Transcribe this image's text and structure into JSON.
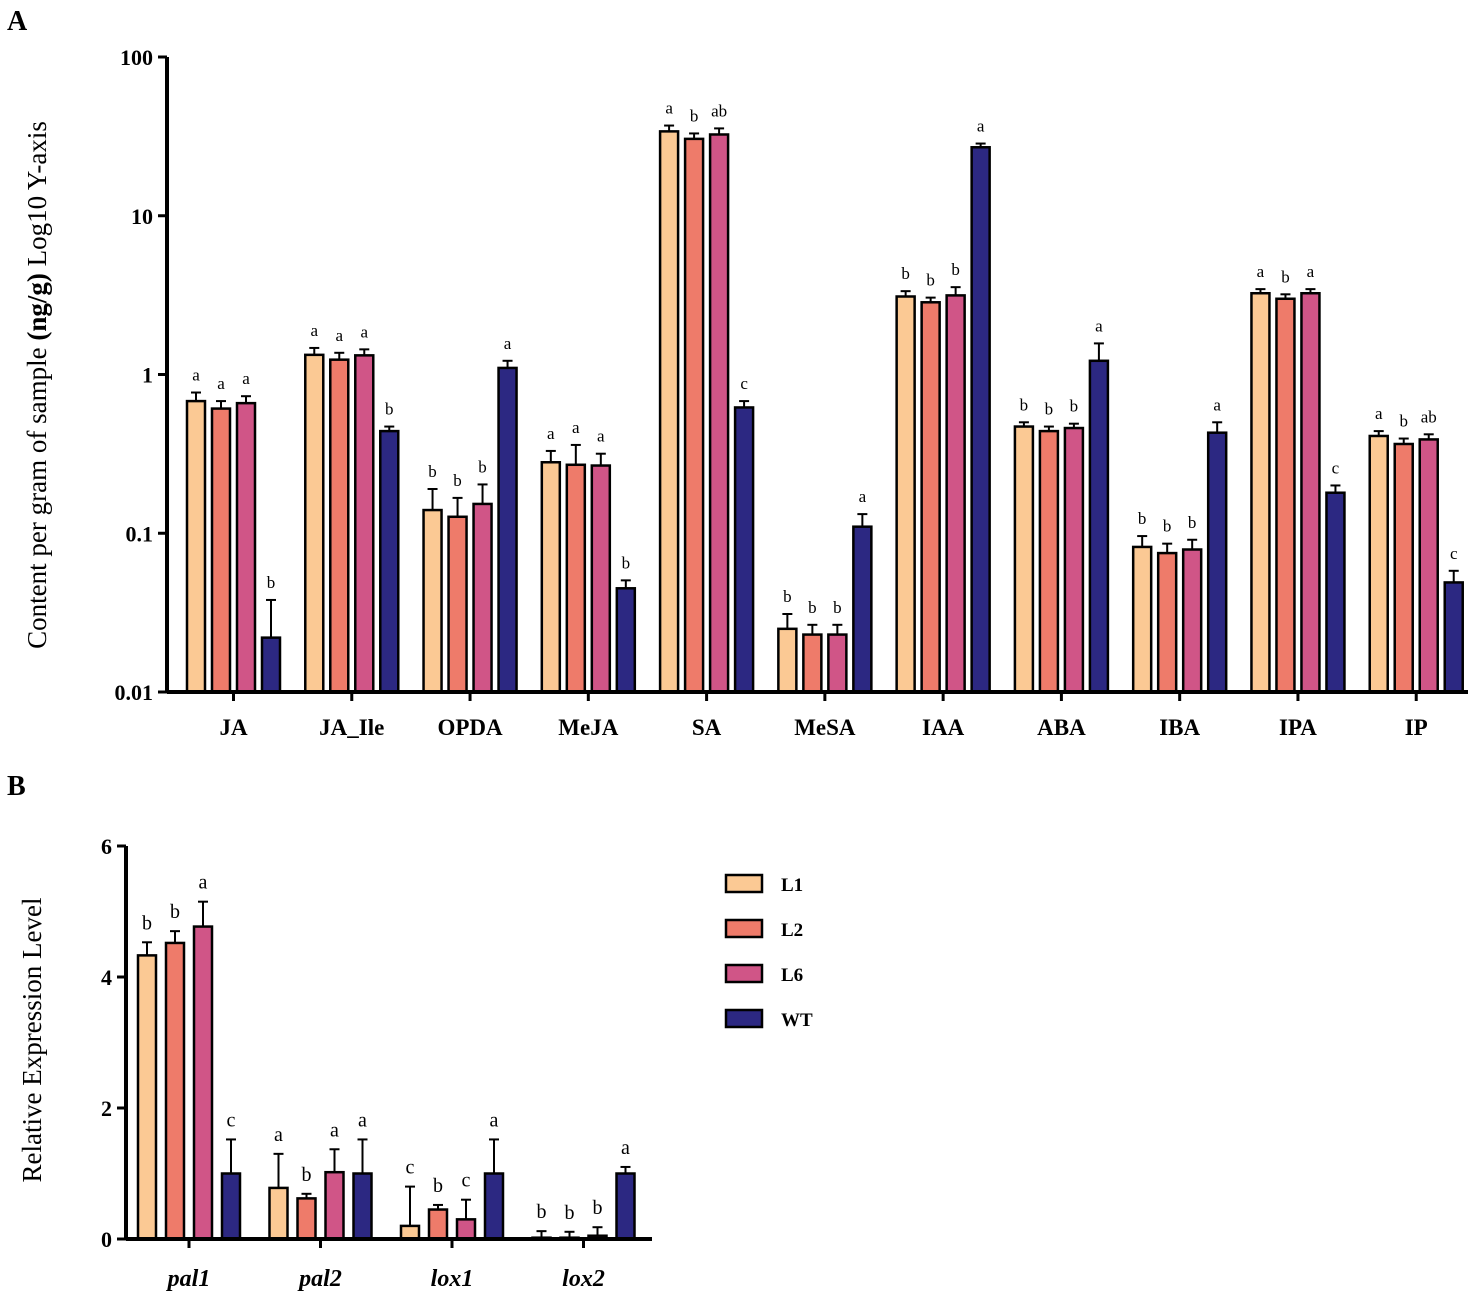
{
  "chart_data": [
    {
      "panel": "A",
      "type": "bar",
      "yscale": "log10",
      "ylabel_prefix": "Content per gram of sample ",
      "ylabel_unit": "(ng/g)",
      "ylabel_suffix": " Log10 Y-axis",
      "xlabel": "",
      "ylim": [
        0.01,
        100
      ],
      "ytick_values": [
        0.01,
        0.1,
        1,
        10,
        100
      ],
      "ytick_labels": [
        "0.01",
        "0.1",
        "1",
        "10",
        "100"
      ],
      "categories": [
        "JA",
        "JA_Ile",
        "OPDA",
        "MeJA",
        "SA",
        "MeSA",
        "IAA",
        "ABA",
        "IBA",
        "IPA",
        "IP"
      ],
      "series": [
        {
          "name": "L1",
          "color": "#FBC994",
          "values": [
            0.68,
            1.33,
            0.14,
            0.28,
            34,
            0.025,
            3.1,
            0.47,
            0.082,
            3.25,
            0.41
          ],
          "errors": [
            0.09,
            0.14,
            0.05,
            0.05,
            3,
            0.006,
            0.25,
            0.03,
            0.014,
            0.2,
            0.03
          ],
          "sig": [
            "a",
            "a",
            "b",
            "a",
            "a",
            "b",
            "b",
            "b",
            "b",
            "a",
            "a"
          ]
        },
        {
          "name": "L2",
          "color": "#EE7B6A",
          "values": [
            0.61,
            1.24,
            0.127,
            0.27,
            30.5,
            0.023,
            2.85,
            0.44,
            0.075,
            3.0,
            0.365
          ],
          "errors": [
            0.07,
            0.13,
            0.04,
            0.09,
            2.5,
            0.0035,
            0.2,
            0.03,
            0.011,
            0.2,
            0.03
          ],
          "sig": [
            "a",
            "a",
            "b",
            "a",
            "b",
            "b",
            "b",
            "b",
            "b",
            "b",
            "b"
          ]
        },
        {
          "name": "L6",
          "color": "#D05587",
          "values": [
            0.66,
            1.32,
            0.153,
            0.267,
            32.5,
            0.023,
            3.15,
            0.46,
            0.079,
            3.25,
            0.39
          ],
          "errors": [
            0.07,
            0.12,
            0.05,
            0.05,
            3,
            0.0035,
            0.4,
            0.03,
            0.012,
            0.2,
            0.03
          ],
          "sig": [
            "a",
            "a",
            "b",
            "a",
            "ab",
            "b",
            "b",
            "b",
            "b",
            "a",
            "ab"
          ]
        },
        {
          "name": "WT",
          "color": "#2C2882",
          "values": [
            0.022,
            0.44,
            1.1,
            0.045,
            0.62,
            0.11,
            27,
            1.22,
            0.43,
            0.18,
            0.049
          ],
          "errors": [
            0.016,
            0.03,
            0.12,
            0.0055,
            0.06,
            0.022,
            1.5,
            0.35,
            0.07,
            0.02,
            0.009
          ],
          "sig": [
            "b",
            "b",
            "a",
            "b",
            "c",
            "a",
            "a",
            "a",
            "a",
            "c",
            "c"
          ]
        }
      ]
    },
    {
      "panel": "B",
      "type": "bar",
      "yscale": "linear",
      "ylabel": "Relative Expression Level",
      "xlabel": "",
      "ylim": [
        0,
        6
      ],
      "ytick_values": [
        0,
        2,
        4,
        6
      ],
      "ytick_labels": [
        "0",
        "2",
        "4",
        "6"
      ],
      "categories": [
        "pal1",
        "pal2",
        "lox1",
        "lox2"
      ],
      "series": [
        {
          "name": "L1",
          "color": "#FBC994",
          "values": [
            4.33,
            0.78,
            0.2,
            0.02
          ],
          "errors": [
            0.2,
            0.52,
            0.6,
            0.1
          ],
          "sig": [
            "b",
            "a",
            "c",
            "b"
          ]
        },
        {
          "name": "L2",
          "color": "#EE7B6A",
          "values": [
            4.52,
            0.62,
            0.45,
            0.02
          ],
          "errors": [
            0.18,
            0.07,
            0.07,
            0.09
          ],
          "sig": [
            "b",
            "b",
            "b",
            "b"
          ]
        },
        {
          "name": "L6",
          "color": "#D05587",
          "values": [
            4.77,
            1.02,
            0.3,
            0.05
          ],
          "errors": [
            0.38,
            0.35,
            0.3,
            0.13
          ],
          "sig": [
            "a",
            "a",
            "c",
            "b"
          ]
        },
        {
          "name": "WT",
          "color": "#2C2882",
          "values": [
            1.0,
            1.0,
            1.0,
            1.0
          ],
          "errors": [
            0.52,
            0.52,
            0.52,
            0.1
          ],
          "sig": [
            "c",
            "a",
            "a",
            "a"
          ]
        }
      ]
    }
  ],
  "legend": {
    "items": [
      {
        "label": "L1",
        "color": "#FBC994"
      },
      {
        "label": "L2",
        "color": "#EE7B6A"
      },
      {
        "label": "L6",
        "color": "#D05587"
      },
      {
        "label": "WT",
        "color": "#2C2882"
      }
    ]
  }
}
